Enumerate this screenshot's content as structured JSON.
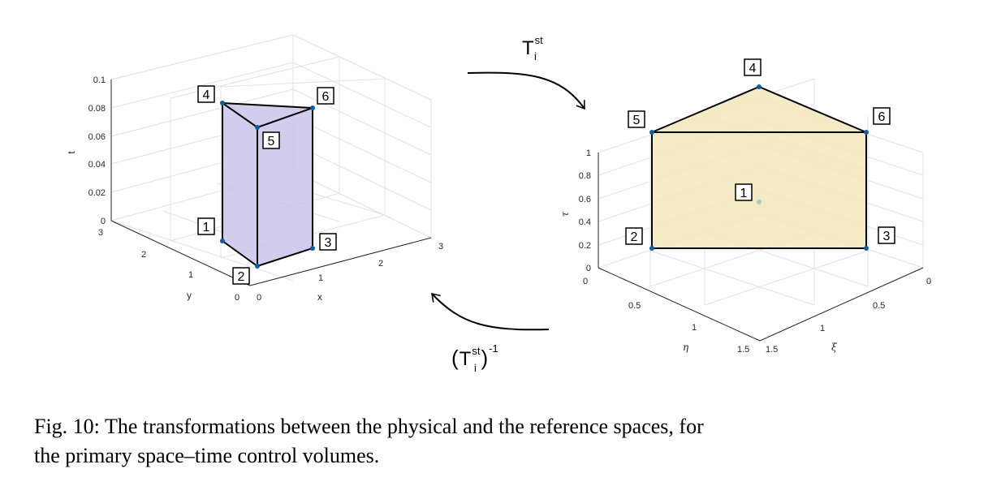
{
  "left_plot": {
    "t_ticks": [
      "0.1",
      "0.08",
      "0.06",
      "0.04",
      "0.02",
      "0"
    ],
    "y_ticks": [
      "3",
      "2",
      "1",
      "0"
    ],
    "x_ticks": [
      "0",
      "1",
      "2",
      "3"
    ],
    "t_label": "t",
    "y_label": "y",
    "x_label": "x",
    "vertices": [
      "1",
      "2",
      "3",
      "4",
      "5",
      "6"
    ],
    "prism_color": "#cbc4ea"
  },
  "right_plot": {
    "tau_ticks": [
      "1",
      "0.8",
      "0.6",
      "0.4",
      "0.2",
      "0"
    ],
    "eta_ticks": [
      "0",
      "0.5",
      "1",
      "1.5"
    ],
    "xi_ticks": [
      "0",
      "0.5",
      "1",
      "1.5"
    ],
    "tau_label": "τ",
    "eta_label": "η",
    "xi_label": "ξ",
    "vertices": [
      "1",
      "2",
      "3",
      "4",
      "5",
      "6"
    ],
    "prism_color": "#f3e9bf"
  },
  "forward_map": {
    "base": "T",
    "sup": "st",
    "sub": "i"
  },
  "inverse_map": {
    "open": "(",
    "base": "T",
    "sup": "st",
    "sub": "i",
    "close": ")",
    "exp": "-1"
  },
  "caption": {
    "line1": "Fig. 10: The transformations between the physical and the reference spaces, for",
    "line2": "the primary space–time control volumes."
  }
}
